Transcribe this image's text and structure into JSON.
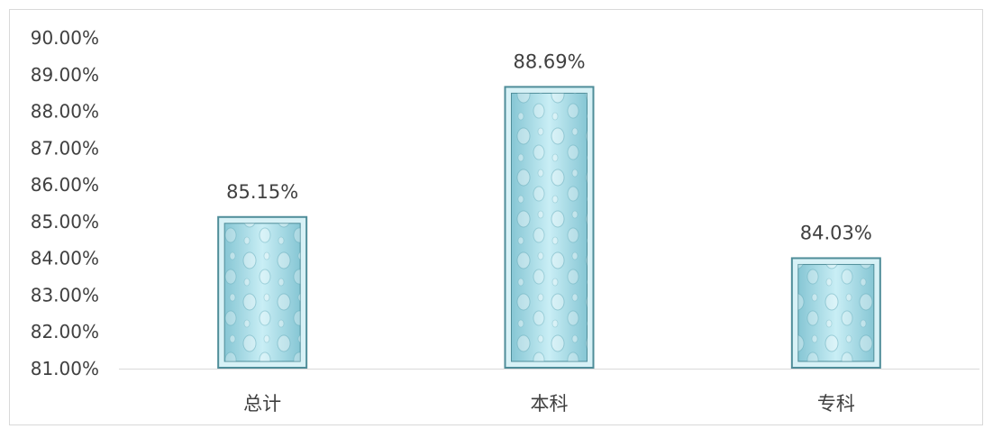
{
  "chart_data": {
    "type": "bar",
    "categories": [
      "总计",
      "本科",
      "专科"
    ],
    "values": [
      85.15,
      88.69,
      84.03
    ],
    "data_labels": [
      "85.15%",
      "88.69%",
      "84.03%"
    ],
    "ylim": [
      81,
      90
    ],
    "yticks": [
      {
        "value": 90,
        "label": "90.00%"
      },
      {
        "value": 89,
        "label": "89.00%"
      },
      {
        "value": 88,
        "label": "88.00%"
      },
      {
        "value": 87,
        "label": "87.00%"
      },
      {
        "value": 86,
        "label": "86.00%"
      },
      {
        "value": 85,
        "label": "85.00%"
      },
      {
        "value": 84,
        "label": "84.00%"
      },
      {
        "value": 83,
        "label": "83.00%"
      },
      {
        "value": 82,
        "label": "82.00%"
      },
      {
        "value": 81,
        "label": "81.00%"
      }
    ],
    "grid": false,
    "legend": "none",
    "bar_color": "#a8dde8",
    "bar_edge_color": "#4f8d99"
  }
}
